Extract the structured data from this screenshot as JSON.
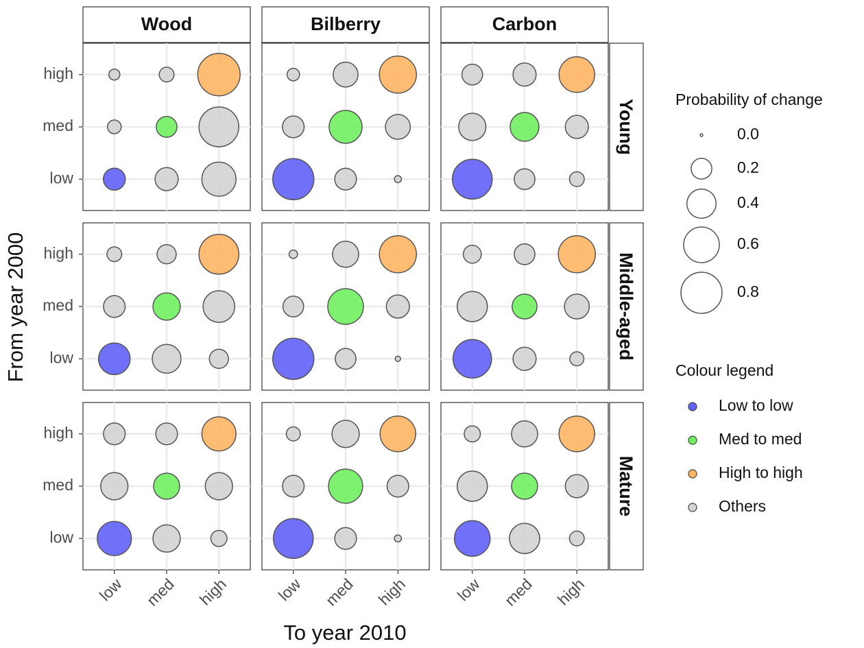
{
  "chart_data": {
    "type": "bubble",
    "x_label": "To year 2010",
    "y_label": "From year 2000",
    "levels": [
      "low",
      "med",
      "high"
    ],
    "columns": [
      "Wood",
      "Bilberry",
      "Carbon"
    ],
    "rows": [
      "Young",
      "Middle-aged",
      "Mature"
    ],
    "values": [
      [
        [
          [
            0.225,
            0.25,
            0.55
          ],
          [
            0.086,
            0.2,
            0.75
          ],
          [
            0.054,
            0.1,
            0.85
          ]
        ],
        [
          [
            0.8,
            0.22,
            0.02
          ],
          [
            0.22,
            0.51,
            0.29
          ],
          [
            0.07,
            0.29,
            0.65
          ]
        ],
        [
          [
            0.75,
            0.2,
            0.1
          ],
          [
            0.35,
            0.39,
            0.25
          ],
          [
            0.2,
            0.25,
            0.6
          ]
        ]
      ],
      [
        [
          [
            0.47,
            0.39,
            0.17
          ],
          [
            0.22,
            0.35,
            0.47
          ],
          [
            0.1,
            0.17,
            0.75
          ]
        ],
        [
          [
            0.8,
            0.2,
            0.01
          ],
          [
            0.2,
            0.6,
            0.25
          ],
          [
            0.03,
            0.32,
            0.65
          ]
        ],
        [
          [
            0.7,
            0.25,
            0.09
          ],
          [
            0.43,
            0.29,
            0.29
          ],
          [
            0.15,
            0.2,
            0.65
          ]
        ]
      ],
      [
        [
          [
            0.55,
            0.35,
            0.12
          ],
          [
            0.35,
            0.32,
            0.35
          ],
          [
            0.22,
            0.22,
            0.55
          ]
        ],
        [
          [
            0.75,
            0.22,
            0.02
          ],
          [
            0.22,
            0.55,
            0.22
          ],
          [
            0.09,
            0.35,
            0.6
          ]
        ],
        [
          [
            0.6,
            0.43,
            0.1
          ],
          [
            0.43,
            0.32,
            0.25
          ],
          [
            0.12,
            0.32,
            0.6
          ]
        ]
      ]
    ],
    "size_legend": {
      "title": "Probability of change",
      "values": [
        {
          "value": 0,
          "label": "0.0"
        },
        0.2,
        0.4,
        0.6,
        0.8
      ]
    },
    "colour_legend": {
      "title": "Colour legend",
      "series": [
        {
          "name": "Low to low",
          "color": "#6060f8"
        },
        {
          "name": "Med to med",
          "color": "#70f060"
        },
        {
          "name": "High to high",
          "color": "#ffb563"
        },
        {
          "name": "Others",
          "color": "#d3d3d3"
        }
      ]
    }
  }
}
